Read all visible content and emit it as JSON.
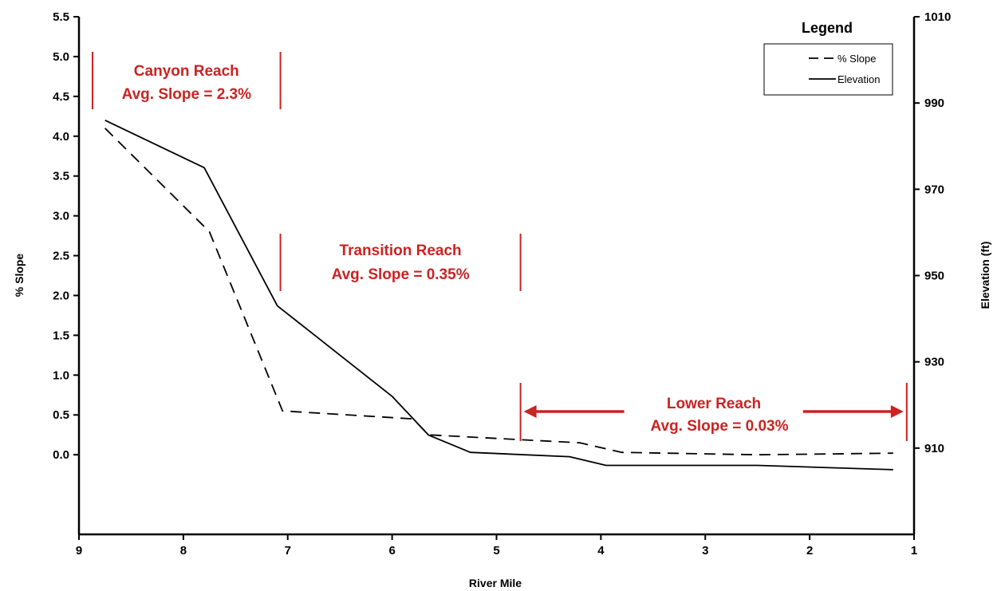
{
  "chart_data": {
    "type": "line",
    "xlabel": "River Mile",
    "ylabel_left": "% Slope",
    "ylabel_right": "Elevation (ft)",
    "xlim": [
      9,
      1
    ],
    "ylim_left": [
      -1,
      5.5
    ],
    "ylim_right": [
      890,
      1010
    ],
    "x_ticks": [
      9,
      8,
      7,
      6,
      5,
      4,
      3,
      2,
      1
    ],
    "y_left_ticks": [
      "5.5",
      "5.0",
      "4.5",
      "4.0",
      "3.5",
      "3.0",
      "2.5",
      "2.0",
      "1.5",
      "1.0",
      "0.5",
      "0.0"
    ],
    "y_right_ticks": [
      1010,
      990,
      970,
      950,
      930,
      910
    ],
    "legend": {
      "title": "Legend",
      "position": "top-right",
      "items": [
        "% Slope",
        "Elevation"
      ]
    },
    "series": [
      {
        "name": "% Slope",
        "axis": "left",
        "style": "dashed",
        "x": [
          8.75,
          7.75,
          7.05,
          5.8,
          5.65,
          4.2,
          3.8,
          2.5,
          1.2
        ],
        "y": [
          4.1,
          2.8,
          0.55,
          0.45,
          0.25,
          0.15,
          0.03,
          0.0,
          0.02
        ]
      },
      {
        "name": "Elevation",
        "axis": "right",
        "style": "solid",
        "x": [
          8.75,
          7.8,
          7.1,
          6.0,
          5.65,
          5.25,
          4.3,
          3.95,
          2.5,
          1.2
        ],
        "y": [
          986,
          975,
          943,
          922,
          913,
          909,
          908,
          906,
          906,
          905
        ]
      }
    ],
    "annotations": [
      {
        "id": "canyon",
        "line1": "Canyon Reach",
        "line2": "Avg. Slope = 2.3%",
        "x_start": 8.87,
        "x_end": 7.07
      },
      {
        "id": "transition",
        "line1": "Transition Reach",
        "line2": "Avg. Slope = 0.35%",
        "x_start": 7.07,
        "x_end": 4.77
      },
      {
        "id": "lower",
        "line1": "Lower Reach",
        "line2": "Avg. Slope = 0.03%",
        "x_start": 4.77,
        "x_end": 1.07
      }
    ],
    "annotation_color": "#cc2222"
  }
}
